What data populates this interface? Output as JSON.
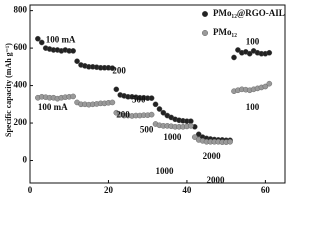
{
  "chart_data": {
    "type": "scatter",
    "ylabel": "Specific capacity (mAh g⁻¹)",
    "xlim": [
      0,
      65
    ],
    "xticks": [
      0,
      20,
      40,
      60
    ],
    "ylim": [
      -120,
      830
    ],
    "yticks": [
      0,
      200,
      400,
      600,
      800
    ],
    "legend": "upper right",
    "series": [
      {
        "name": "PMo₁₂@RGO-AIL",
        "color": "#222222",
        "x": [
          2,
          3,
          4,
          5,
          6,
          7,
          8,
          9,
          10,
          11,
          12,
          13,
          14,
          15,
          16,
          17,
          18,
          19,
          20,
          21,
          22,
          23,
          24,
          25,
          26,
          27,
          28,
          29,
          30,
          31,
          32,
          33,
          34,
          35,
          36,
          37,
          38,
          39,
          40,
          41,
          42,
          43,
          44,
          45,
          46,
          47,
          48,
          49,
          50,
          51,
          52,
          53,
          54,
          55,
          56,
          57,
          58,
          59,
          60,
          61
        ],
        "values": [
          650,
          630,
          600,
          595,
          590,
          590,
          585,
          590,
          585,
          585,
          530,
          510,
          505,
          500,
          500,
          498,
          495,
          495,
          495,
          493,
          380,
          350,
          345,
          340,
          340,
          338,
          335,
          335,
          333,
          333,
          300,
          275,
          255,
          240,
          230,
          220,
          215,
          212,
          210,
          210,
          180,
          140,
          125,
          118,
          115,
          112,
          110,
          110,
          108,
          108,
          550,
          590,
          575,
          580,
          570,
          585,
          575,
          570,
          570,
          575
        ]
      },
      {
        "name": "PMo₁₂",
        "color": "#9a9a9a",
        "x": [
          2,
          3,
          4,
          5,
          6,
          7,
          8,
          9,
          10,
          11,
          12,
          13,
          14,
          15,
          16,
          17,
          18,
          19,
          20,
          21,
          22,
          23,
          24,
          25,
          26,
          27,
          28,
          29,
          30,
          31,
          32,
          33,
          34,
          35,
          36,
          37,
          38,
          39,
          40,
          41,
          42,
          43,
          44,
          45,
          46,
          47,
          48,
          49,
          50,
          51,
          52,
          53,
          54,
          55,
          56,
          57,
          58,
          59,
          60,
          61
        ],
        "values": [
          335,
          340,
          338,
          335,
          335,
          330,
          335,
          338,
          340,
          342,
          310,
          300,
          300,
          298,
          300,
          302,
          305,
          305,
          308,
          310,
          255,
          245,
          240,
          240,
          238,
          240,
          240,
          242,
          242,
          245,
          195,
          188,
          185,
          185,
          183,
          180,
          180,
          180,
          182,
          185,
          125,
          110,
          105,
          100,
          100,
          100,
          100,
          98,
          98,
          100,
          370,
          375,
          380,
          378,
          375,
          380,
          385,
          390,
          395,
          410
        ]
      }
    ],
    "annotations": [
      "100 mA",
      "200",
      "500",
      "1000",
      "2000",
      "100",
      "100 mA",
      "200",
      "500",
      "1000",
      "2000",
      "100"
    ]
  }
}
